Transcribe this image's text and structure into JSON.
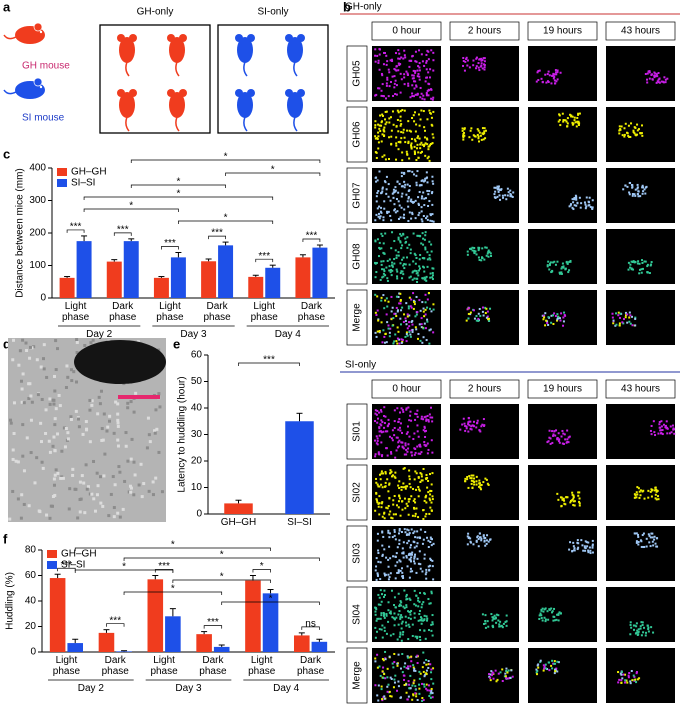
{
  "panel_letters": [
    "a",
    "b",
    "c",
    "d",
    "e",
    "f"
  ],
  "panel_a": {
    "gh_label": "GH mouse",
    "si_label": "SI mouse",
    "boxes": [
      "GH-only",
      "SI-only"
    ]
  },
  "panel_b": {
    "sections": [
      {
        "title": "GH-only",
        "columns": [
          "0 hour",
          "2 hours",
          "19 hours",
          "43 hours"
        ],
        "rows": [
          "GH05",
          "GH06",
          "GH07",
          "GH08",
          "Merge"
        ]
      },
      {
        "title": "SI-only",
        "columns": [
          "0 hour",
          "2 hours",
          "19 hours",
          "43 hours"
        ],
        "rows": [
          "SI01",
          "SI02",
          "SI03",
          "SI04",
          "Merge"
        ]
      }
    ]
  },
  "chart_data": [
    {
      "type": "bar",
      "ylabel": "Distance between mice (mm)",
      "categories": [
        "Light phase",
        "Dark phase",
        "Light phase",
        "Dark phase",
        "Light phase",
        "Dark phase"
      ],
      "groups": [
        "Day 2",
        "Day 3",
        "Day 4"
      ],
      "series": [
        {
          "name": "GH–GH",
          "color": "#f03c1e",
          "values": [
            62,
            112,
            62,
            113,
            65,
            125
          ],
          "errors": [
            4,
            6,
            4,
            7,
            5,
            8
          ]
        },
        {
          "name": "SI–SI",
          "color": "#1e50e8",
          "values": [
            175,
            175,
            125,
            162,
            93,
            155
          ],
          "errors": [
            16,
            7,
            15,
            10,
            8,
            8
          ]
        }
      ],
      "ylim": [
        0,
        400
      ],
      "yticks": [
        0,
        100,
        200,
        300,
        400
      ],
      "annotations": [
        "***",
        "***",
        "***",
        "***",
        "***",
        "***",
        "*",
        "*",
        "*",
        "*",
        "*",
        "*"
      ]
    },
    {
      "type": "bar",
      "ylabel": "Latency  to huddling (hour)",
      "categories": [
        "GH–GH",
        "SI–SI"
      ],
      "values": [
        4,
        35
      ],
      "errors": [
        1.2,
        3
      ],
      "colors": [
        "#f03c1e",
        "#1e50e8"
      ],
      "ylim": [
        0,
        60
      ],
      "yticks": [
        0,
        10,
        20,
        30,
        40,
        50,
        60
      ],
      "annotations": [
        "***"
      ]
    },
    {
      "type": "bar",
      "ylabel": "Huddling (%)",
      "categories": [
        "Light phase",
        "Dark phase",
        "Light phase",
        "Dark phase",
        "Light phase",
        "Dark phase"
      ],
      "groups": [
        "Day 2",
        "Day 3",
        "Day 4"
      ],
      "series": [
        {
          "name": "GH–GH",
          "color": "#f03c1e",
          "values": [
            58,
            15,
            57,
            14,
            56,
            13
          ],
          "errors": [
            3,
            2.5,
            3,
            2,
            4,
            2
          ]
        },
        {
          "name": "SI–SI",
          "color": "#1e50e8",
          "values": [
            7,
            0.5,
            28,
            4,
            46,
            8
          ],
          "errors": [
            3,
            0.5,
            6,
            1.5,
            3,
            2
          ]
        }
      ],
      "ylim": [
        0,
        80
      ],
      "yticks": [
        0,
        20,
        40,
        60,
        80
      ],
      "annotations": [
        "***",
        "***",
        "***",
        "***",
        "*",
        "ns",
        "*",
        "*",
        "*",
        "*",
        "*",
        "*"
      ]
    }
  ]
}
